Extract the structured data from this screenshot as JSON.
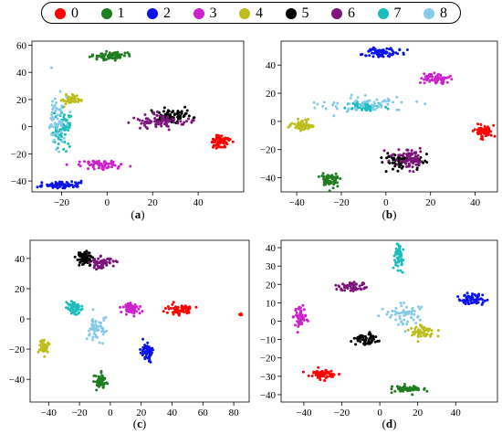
{
  "legend": {
    "items": [
      {
        "label": "0",
        "color": "#ff0000"
      },
      {
        "label": "1",
        "color": "#1e7d1e"
      },
      {
        "label": "2",
        "color": "#0a14e6"
      },
      {
        "label": "3",
        "color": "#cc22cc"
      },
      {
        "label": "4",
        "color": "#bdbd1c"
      },
      {
        "label": "5",
        "color": "#000000"
      },
      {
        "label": "6",
        "color": "#7d157d"
      },
      {
        "label": "7",
        "color": "#1cbdbd"
      },
      {
        "label": "8",
        "color": "#87cbe8"
      }
    ]
  },
  "chart_data": [
    {
      "type": "scatter",
      "caption_open": "(",
      "caption_letter": "a",
      "caption_close": ")",
      "xlim": [
        -33,
        60
      ],
      "ylim": [
        -48,
        63
      ],
      "xticks": [
        -20,
        0,
        20,
        40
      ],
      "yticks": [
        -40,
        -20,
        0,
        20,
        40,
        60
      ],
      "clusters": [
        {
          "class": 0,
          "cx": 50,
          "cy": -11,
          "sx": 2.4,
          "sy": 2.5,
          "n": 70
        },
        {
          "class": 1,
          "cx": 2,
          "cy": 52,
          "sx": 3.8,
          "sy": 1.6,
          "n": 70
        },
        {
          "class": 2,
          "cx": -20,
          "cy": -43,
          "sx": 4.8,
          "sy": 1.3,
          "n": 70
        },
        {
          "class": 3,
          "cx": -3,
          "cy": -28,
          "sx": 4.6,
          "sy": 1.6,
          "n": 70
        },
        {
          "class": 4,
          "cx": -16,
          "cy": 20,
          "sx": 2.3,
          "sy": 2.2,
          "n": 45
        },
        {
          "class": 5,
          "cx": 30,
          "cy": 8,
          "sx": 4.2,
          "sy": 2.6,
          "n": 70
        },
        {
          "class": 6,
          "cx": 24,
          "cy": 4,
          "sx": 6.0,
          "sy": 2.4,
          "n": 80
        },
        {
          "class": 7,
          "cx": -20,
          "cy": 0,
          "sx": 2.6,
          "sy": 6.5,
          "n": 70
        },
        {
          "class": 8,
          "cx": -22,
          "cy": 5,
          "sx": 1.8,
          "sy": 11,
          "n": 60
        }
      ]
    },
    {
      "type": "scatter",
      "caption_open": "(",
      "caption_letter": "b",
      "caption_close": ")",
      "xlim": [
        -47,
        50
      ],
      "ylim": [
        -50,
        57
      ],
      "xticks": [
        -40,
        -20,
        0,
        20,
        40
      ],
      "yticks": [
        -40,
        -20,
        0,
        20,
        40
      ],
      "clusters": [
        {
          "class": 0,
          "cx": 44,
          "cy": -7,
          "sx": 2.2,
          "sy": 2.0,
          "n": 60
        },
        {
          "class": 1,
          "cx": -25,
          "cy": -42,
          "sx": 2.2,
          "sy": 2.3,
          "n": 60
        },
        {
          "class": 2,
          "cx": -2,
          "cy": 49,
          "sx": 4.0,
          "sy": 1.6,
          "n": 70
        },
        {
          "class": 3,
          "cx": 23,
          "cy": 30,
          "sx": 3.2,
          "sy": 1.6,
          "n": 60
        },
        {
          "class": 4,
          "cx": -38,
          "cy": -3,
          "sx": 2.6,
          "sy": 1.8,
          "n": 60
        },
        {
          "class": 5,
          "cx": 7,
          "cy": -28,
          "sx": 4.5,
          "sy": 3.0,
          "n": 80
        },
        {
          "class": 6,
          "cx": 11,
          "cy": -27,
          "sx": 3.8,
          "sy": 3.0,
          "n": 80
        },
        {
          "class": 7,
          "cx": -10,
          "cy": 11,
          "sx": 3.2,
          "sy": 1.8,
          "n": 60
        },
        {
          "class": 8,
          "cx": -10,
          "cy": 12,
          "sx": 10,
          "sy": 3.0,
          "n": 60
        }
      ]
    },
    {
      "type": "scatter",
      "caption_open": "(",
      "caption_letter": "c",
      "caption_close": ")",
      "xlim": [
        -52,
        90
      ],
      "ylim": [
        -55,
        52
      ],
      "xticks": [
        -40,
        -20,
        0,
        20,
        40,
        60,
        80
      ],
      "yticks": [
        -40,
        -20,
        0,
        20,
        40
      ],
      "clusters": [
        {
          "class": 0,
          "cx": 44,
          "cy": 6,
          "sx": 4.5,
          "sy": 1.8,
          "n": 60
        },
        {
          "class": 0,
          "cx": 85,
          "cy": 3,
          "sx": 0.5,
          "sy": 0.3,
          "n": 5
        },
        {
          "class": 1,
          "cx": -6,
          "cy": -41,
          "sx": 1.8,
          "sy": 2.5,
          "n": 60
        },
        {
          "class": 2,
          "cx": 24,
          "cy": -22,
          "sx": 2.0,
          "sy": 3.2,
          "n": 60
        },
        {
          "class": 3,
          "cx": 14,
          "cy": 7,
          "sx": 3.0,
          "sy": 1.8,
          "n": 60
        },
        {
          "class": 4,
          "cx": -43,
          "cy": -19,
          "sx": 1.6,
          "sy": 2.5,
          "n": 55
        },
        {
          "class": 5,
          "cx": -17,
          "cy": 40,
          "sx": 2.6,
          "sy": 2.4,
          "n": 60
        },
        {
          "class": 6,
          "cx": -5,
          "cy": 37,
          "sx": 3.5,
          "sy": 2.0,
          "n": 60
        },
        {
          "class": 7,
          "cx": -23,
          "cy": 7,
          "sx": 2.6,
          "sy": 2.0,
          "n": 55
        },
        {
          "class": 8,
          "cx": -9,
          "cy": -7,
          "sx": 3.0,
          "sy": 3.5,
          "n": 55
        }
      ]
    },
    {
      "type": "scatter",
      "caption_open": "(",
      "caption_letter": "d",
      "caption_close": ")",
      "xlim": [
        -52,
        62
      ],
      "ylim": [
        -44,
        44
      ],
      "xticks": [
        -40,
        -20,
        0,
        20,
        40
      ],
      "yticks": [
        -40,
        -30,
        -20,
        -10,
        0,
        10,
        20,
        30,
        40
      ],
      "clusters": [
        {
          "class": 0,
          "cx": -30,
          "cy": -29,
          "sx": 3.5,
          "sy": 1.4,
          "n": 60
        },
        {
          "class": 1,
          "cx": 15,
          "cy": -37,
          "sx": 4.0,
          "sy": 1.0,
          "n": 60
        },
        {
          "class": 2,
          "cx": 48,
          "cy": 12,
          "sx": 3.8,
          "sy": 1.5,
          "n": 60
        },
        {
          "class": 3,
          "cx": -42,
          "cy": 2,
          "sx": 1.6,
          "sy": 3.0,
          "n": 55
        },
        {
          "class": 4,
          "cx": 23,
          "cy": -6,
          "sx": 3.5,
          "sy": 1.6,
          "n": 55
        },
        {
          "class": 5,
          "cx": -8,
          "cy": -10,
          "sx": 3.4,
          "sy": 1.6,
          "n": 60
        },
        {
          "class": 6,
          "cx": -15,
          "cy": 19,
          "sx": 4.0,
          "sy": 1.1,
          "n": 60
        },
        {
          "class": 7,
          "cx": 10,
          "cy": 35,
          "sx": 1.2,
          "sy": 3.8,
          "n": 55
        },
        {
          "class": 8,
          "cx": 13,
          "cy": 4,
          "sx": 5.0,
          "sy": 3.0,
          "n": 55
        }
      ]
    }
  ]
}
